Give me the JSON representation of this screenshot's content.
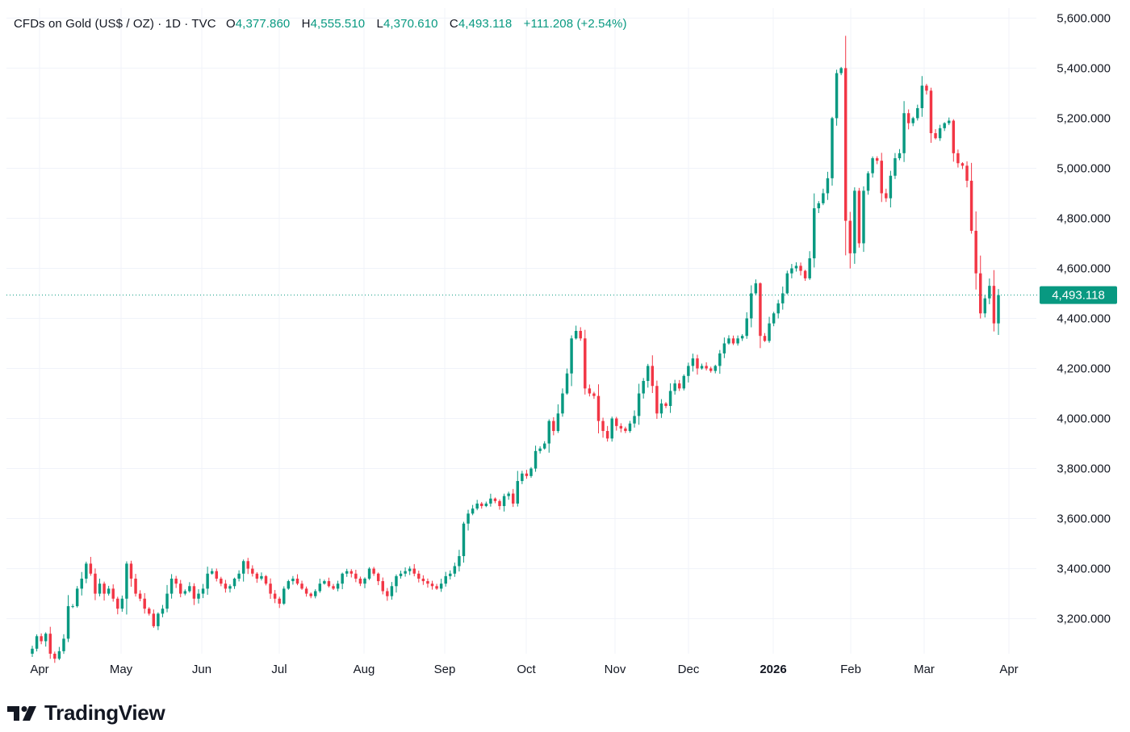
{
  "legend": {
    "symbol": "CFDs on Gold (US$ / OZ) · 1D · TVC",
    "o_label": "O",
    "o_value": "4,377.860",
    "h_label": "H",
    "h_value": "4,555.510",
    "l_label": "L",
    "l_value": "4,370.610",
    "c_label": "C",
    "c_value": "4,493.118",
    "change": "+111.208 (+2.54%)"
  },
  "brand": {
    "name": "TradingView",
    "logo_icon": "tradingview-logo-icon"
  },
  "colors": {
    "up": "#089981",
    "down": "#f23645",
    "grid": "#f0f3fa",
    "price_line": "#089981",
    "text": "#131722"
  },
  "chart_data": {
    "type": "candlestick",
    "title": "CFDs on Gold (US$ / OZ)",
    "interval": "1D",
    "source": "TVC",
    "grid": true,
    "ylim": [
      3060,
      5640
    ],
    "y_ticks": [
      3200,
      3400,
      3600,
      3800,
      4000,
      4200,
      4400,
      4600,
      4800,
      5000,
      5200,
      5400,
      5600
    ],
    "y_tick_labels": [
      "3,200.000",
      "3,400.000",
      "3,600.000",
      "3,800.000",
      "4,000.000",
      "4,200.000",
      "4,400.000",
      "4,600.000",
      "4,800.000",
      "5,000.000",
      "5,200.000",
      "5,400.000",
      "5,600.000"
    ],
    "x_ticks": [
      {
        "label": "Apr",
        "bold": false
      },
      {
        "label": "May",
        "bold": false
      },
      {
        "label": "Jun",
        "bold": false
      },
      {
        "label": "Jul",
        "bold": false
      },
      {
        "label": "Aug",
        "bold": false
      },
      {
        "label": "Sep",
        "bold": false
      },
      {
        "label": "Oct",
        "bold": false
      },
      {
        "label": "Nov",
        "bold": false
      },
      {
        "label": "Dec",
        "bold": false
      },
      {
        "label": "2026",
        "bold": true
      },
      {
        "label": "Feb",
        "bold": false
      },
      {
        "label": "Mar",
        "bold": false
      },
      {
        "label": "Apr",
        "bold": false
      }
    ],
    "last_price": 4493.118,
    "last_price_label": "4,493.118",
    "closes": [
      3080,
      3130,
      3110,
      3140,
      3060,
      3040,
      3070,
      3120,
      3250,
      3250,
      3320,
      3360,
      3420,
      3380,
      3300,
      3340,
      3300,
      3320,
      3280,
      3240,
      3280,
      3420,
      3360,
      3300,
      3280,
      3240,
      3220,
      3170,
      3220,
      3240,
      3300,
      3360,
      3340,
      3300,
      3310,
      3330,
      3280,
      3300,
      3320,
      3380,
      3390,
      3360,
      3340,
      3320,
      3330,
      3360,
      3380,
      3430,
      3400,
      3380,
      3360,
      3370,
      3340,
      3300,
      3280,
      3260,
      3320,
      3350,
      3360,
      3340,
      3320,
      3300,
      3290,
      3310,
      3340,
      3350,
      3330,
      3320,
      3340,
      3380,
      3390,
      3380,
      3360,
      3340,
      3360,
      3400,
      3380,
      3350,
      3310,
      3290,
      3330,
      3370,
      3380,
      3390,
      3400,
      3380,
      3360,
      3350,
      3340,
      3330,
      3320,
      3340,
      3370,
      3380,
      3410,
      3450,
      3580,
      3620,
      3640,
      3660,
      3650,
      3660,
      3680,
      3670,
      3650,
      3690,
      3700,
      3660,
      3750,
      3780,
      3770,
      3800,
      3870,
      3880,
      3900,
      3990,
      3950,
      4020,
      4100,
      4180,
      4320,
      4350,
      4320,
      4120,
      4100,
      4090,
      3990,
      3950,
      3920,
      4000,
      3970,
      3960,
      3950,
      3980,
      4010,
      4100,
      4150,
      4210,
      4130,
      4020,
      4060,
      4050,
      4110,
      4140,
      4120,
      4170,
      4210,
      4240,
      4200,
      4210,
      4200,
      4190,
      4210,
      4260,
      4300,
      4320,
      4300,
      4320,
      4330,
      4400,
      4500,
      4540,
      4330,
      4310,
      4380,
      4420,
      4460,
      4500,
      4580,
      4600,
      4610,
      4590,
      4560,
      4640,
      4840,
      4860,
      4900,
      4960,
      5200,
      5380,
      5400,
      4790,
      4660,
      4910,
      4700,
      4910,
      4980,
      5040,
      5030,
      4900,
      4880,
      4970,
      5040,
      5060,
      5220,
      5180,
      5200,
      5240,
      5330,
      5310,
      5140,
      5120,
      5160,
      5180,
      5190,
      5060,
      5020,
      5010,
      4950,
      4750,
      4580,
      4420,
      4480,
      4530,
      4380,
      4493
    ]
  }
}
